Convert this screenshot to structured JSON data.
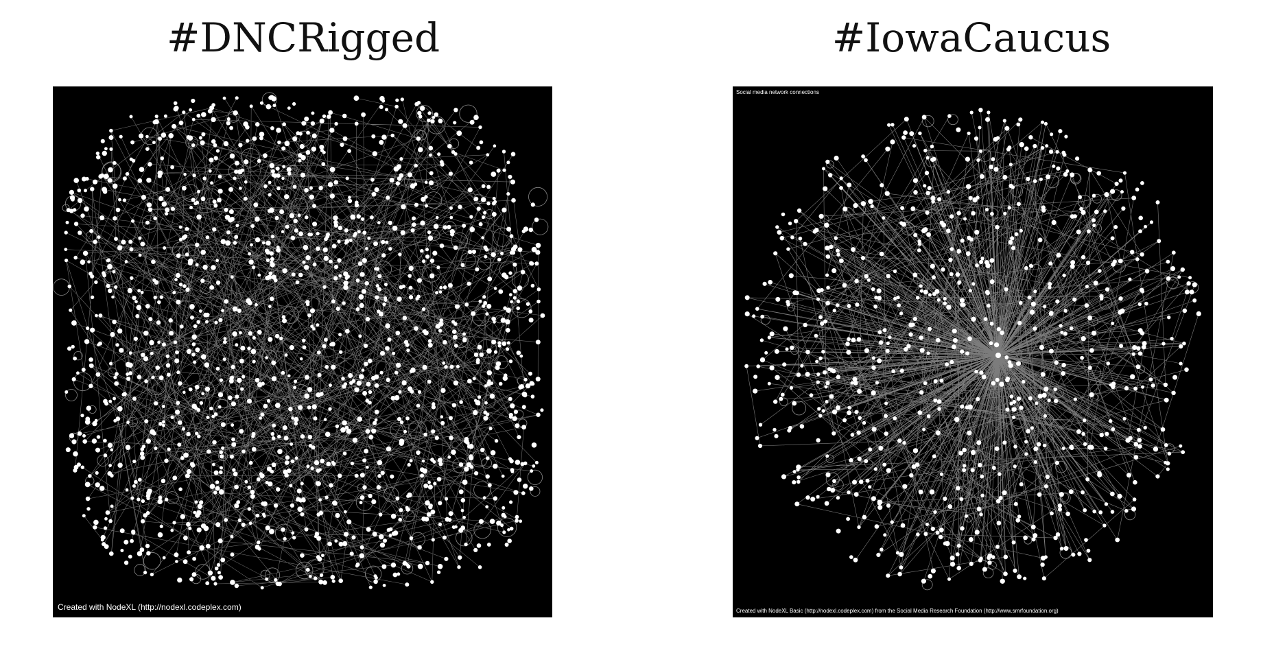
{
  "panels": [
    {
      "title": "#DNCRigged",
      "credit": "Created with NodeXL (http://nodexl.codeplex.com)"
    },
    {
      "title": "#IowaCaucus",
      "header": "Social media network connections",
      "credit": "Created with NodeXL Basic (http://nodexl.codeplex.com) from the Social Media Research Foundation (http://www.smrfoundation.org)"
    }
  ],
  "colors": {
    "page_background": "#ffffff",
    "panel_background": "#000000",
    "node": "#ffffff",
    "edge": "#8a8a8a",
    "title_text": "#111111"
  }
}
